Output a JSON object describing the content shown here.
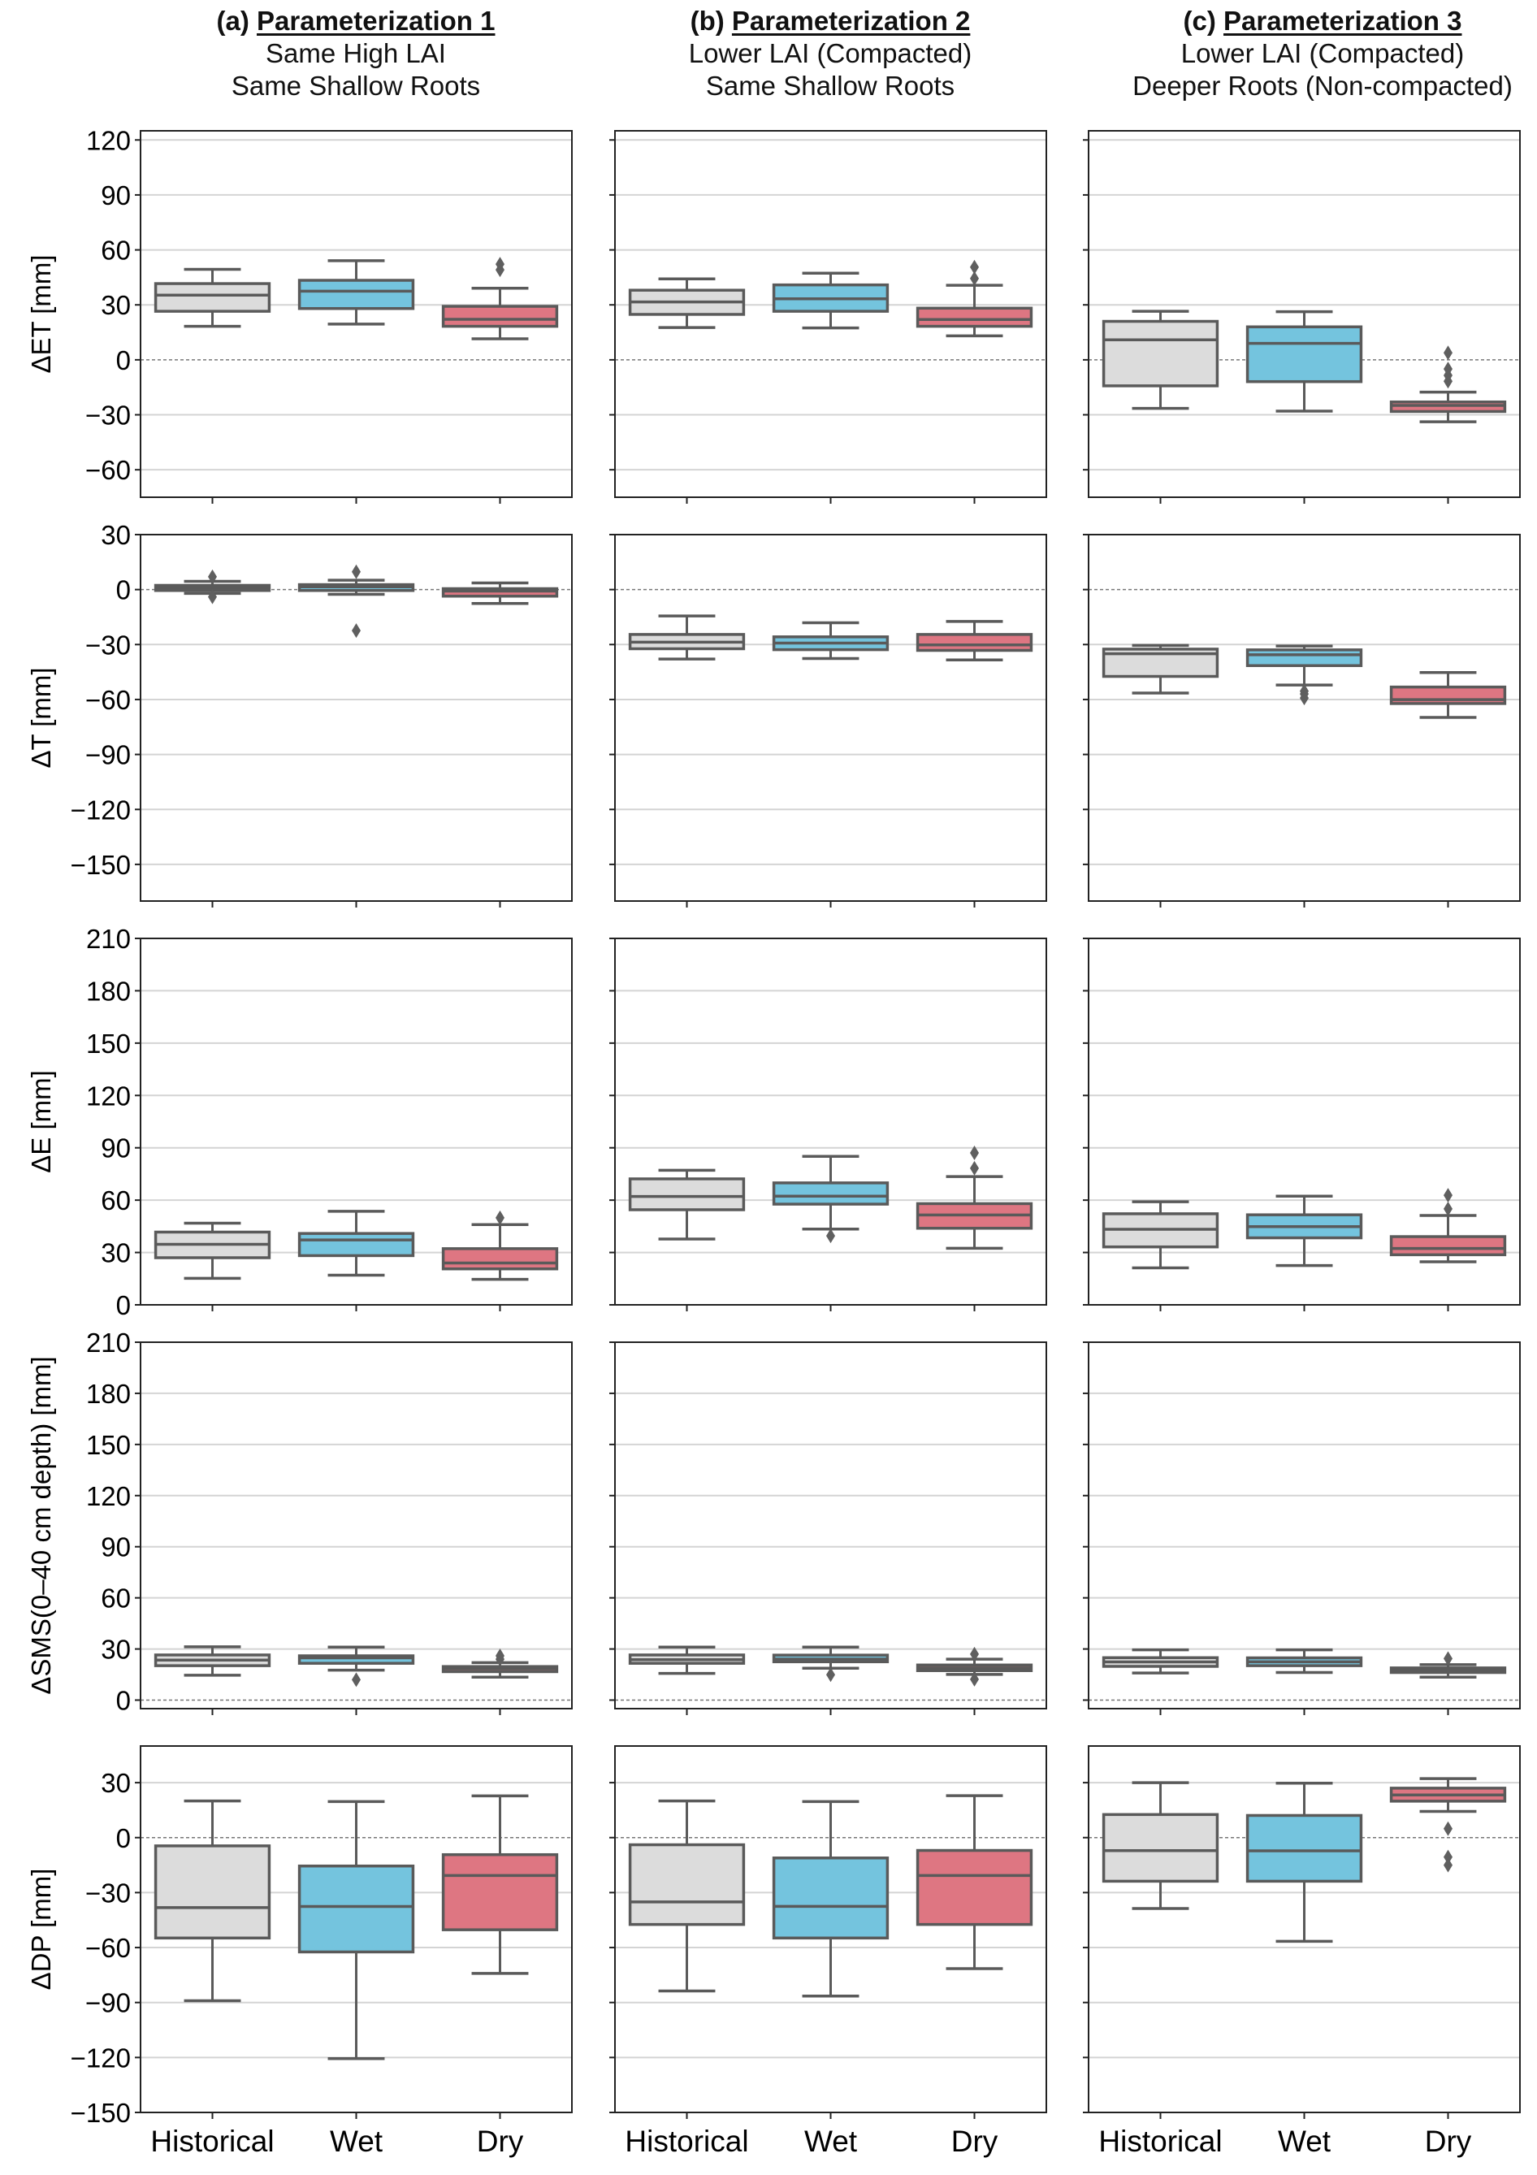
{
  "chart_data": {
    "type": "box",
    "title": "",
    "categories": [
      "Historical",
      "Wet",
      "Dry"
    ],
    "category_colors": {
      "Historical": "#dcdcdc",
      "Wet": "#74c4de",
      "Dry": "#de7682"
    },
    "edge_color": "#5a5a5a",
    "grid": "horizontal",
    "zero_line": "dashed",
    "columns": [
      {
        "id": "a",
        "prefix": "(a)",
        "title": "Parameterization 1",
        "line2": "Same High LAI",
        "line3": "Same Shallow Roots"
      },
      {
        "id": "b",
        "prefix": "(b)",
        "title": "Parameterization 2",
        "line2": "Lower LAI (Compacted)",
        "line3": "Same Shallow Roots"
      },
      {
        "id": "c",
        "prefix": "(c)",
        "title": "Parameterization 3",
        "line2": "Lower LAI (Compacted)",
        "line3": "Deeper Roots (Non-compacted)"
      }
    ],
    "rows": [
      {
        "ylabel": "ΔET [mm]",
        "ylim": [
          -75,
          125
        ],
        "yticks": [
          -60,
          -30,
          0,
          30,
          60,
          90,
          120
        ],
        "panels": [
          {
            "boxes": [
              {
                "cat": "Historical",
                "whislo": 18.3,
                "q1": 26.5,
                "med": 35.3,
                "q3": 41.6,
                "whishi": 49.4,
                "fliers": []
              },
              {
                "cat": "Wet",
                "whislo": 19.5,
                "q1": 28.0,
                "med": 37.5,
                "q3": 43.4,
                "whishi": 54.1,
                "fliers": []
              },
              {
                "cat": "Dry",
                "whislo": 11.5,
                "q1": 18.3,
                "med": 22.1,
                "q3": 29.2,
                "whishi": 39.1,
                "fliers": [
                  49.1,
                  52.2
                ]
              }
            ]
          },
          {
            "boxes": [
              {
                "cat": "Historical",
                "whislo": 17.6,
                "q1": 24.8,
                "med": 31.6,
                "q3": 38.0,
                "whishi": 44.2,
                "fliers": []
              },
              {
                "cat": "Wet",
                "whislo": 17.4,
                "q1": 26.5,
                "med": 33.3,
                "q3": 40.9,
                "whishi": 47.3,
                "fliers": []
              },
              {
                "cat": "Dry",
                "whislo": 13.1,
                "q1": 18.3,
                "med": 22.0,
                "q3": 28.2,
                "whishi": 40.7,
                "fliers": [
                  44.4,
                  50.6
                ]
              }
            ]
          },
          {
            "boxes": [
              {
                "cat": "Historical",
                "whislo": -26.5,
                "q1": -14.2,
                "med": 10.9,
                "q3": 21.0,
                "whishi": 26.5,
                "fliers": []
              },
              {
                "cat": "Wet",
                "whislo": -28.0,
                "q1": -11.9,
                "med": 9.0,
                "q3": 18.0,
                "whishi": 26.3,
                "fliers": []
              },
              {
                "cat": "Dry",
                "whislo": -33.8,
                "q1": -28.2,
                "med": -24.9,
                "q3": -23.0,
                "whishi": -17.6,
                "fliers": [
                  -11.7,
                  -8.5,
                  -5.0,
                  3.8
                ]
              }
            ]
          }
        ]
      },
      {
        "ylabel": "ΔT [mm]",
        "ylim": [
          -170,
          30
        ],
        "yticks": [
          -150,
          -120,
          -90,
          -60,
          -30,
          0,
          30
        ],
        "panels": [
          {
            "boxes": [
              {
                "cat": "Historical",
                "whislo": -2.1,
                "q1": -0.5,
                "med": 1.0,
                "q3": 2.3,
                "whishi": 4.5,
                "fliers": [
                  7.0,
                  -4.0
                ]
              },
              {
                "cat": "Wet",
                "whislo": -2.6,
                "q1": -0.5,
                "med": 1.5,
                "q3": 2.7,
                "whishi": 5.1,
                "fliers": [
                  9.7,
                  -22.4
                ]
              },
              {
                "cat": "Dry",
                "whislo": -7.6,
                "q1": -3.6,
                "med": -0.8,
                "q3": 0.5,
                "whishi": 3.6,
                "fliers": []
              }
            ]
          },
          {
            "boxes": [
              {
                "cat": "Historical",
                "whislo": -37.9,
                "q1": -32.3,
                "med": -28.7,
                "q3": -24.5,
                "whishi": -14.4,
                "fliers": []
              },
              {
                "cat": "Wet",
                "whislo": -37.6,
                "q1": -32.8,
                "med": -29.2,
                "q3": -25.8,
                "whishi": -18.1,
                "fliers": []
              },
              {
                "cat": "Dry",
                "whislo": -38.4,
                "q1": -33.2,
                "med": -30.2,
                "q3": -24.5,
                "whishi": -17.4,
                "fliers": []
              }
            ]
          },
          {
            "boxes": [
              {
                "cat": "Historical",
                "whislo": -56.5,
                "q1": -47.4,
                "med": -35.0,
                "q3": -32.5,
                "whishi": -30.5,
                "fliers": []
              },
              {
                "cat": "Wet",
                "whislo": -52.1,
                "q1": -41.5,
                "med": -35.6,
                "q3": -32.9,
                "whishi": -30.8,
                "fliers": [
                  -55.4,
                  -57.0,
                  -59.2
                ]
              },
              {
                "cat": "Dry",
                "whislo": -69.8,
                "q1": -62.2,
                "med": -60.1,
                "q3": -53.2,
                "whishi": -45.3,
                "fliers": []
              }
            ]
          }
        ]
      },
      {
        "ylabel": "ΔE [mm]",
        "ylim": [
          0,
          210
        ],
        "yticks": [
          0,
          30,
          60,
          90,
          120,
          150,
          180,
          210
        ],
        "panels": [
          {
            "boxes": [
              {
                "cat": "Historical",
                "whislo": 15.2,
                "q1": 27.0,
                "med": 34.7,
                "q3": 41.7,
                "whishi": 46.8,
                "fliers": []
              },
              {
                "cat": "Wet",
                "whislo": 17.0,
                "q1": 28.2,
                "med": 37.2,
                "q3": 40.9,
                "whishi": 53.6,
                "fliers": []
              },
              {
                "cat": "Dry",
                "whislo": 14.6,
                "q1": 20.6,
                "med": 24.0,
                "q3": 32.2,
                "whishi": 46.0,
                "fliers": [
                  49.9
                ]
              }
            ]
          },
          {
            "boxes": [
              {
                "cat": "Historical",
                "whislo": 37.7,
                "q1": 54.5,
                "med": 62.1,
                "q3": 72.2,
                "whishi": 77.1,
                "fliers": []
              },
              {
                "cat": "Wet",
                "whislo": 43.4,
                "q1": 57.7,
                "med": 62.3,
                "q3": 69.9,
                "whishi": 85.1,
                "fliers": [
                  39.5
                ]
              },
              {
                "cat": "Dry",
                "whislo": 32.4,
                "q1": 43.9,
                "med": 51.5,
                "q3": 58.0,
                "whishi": 73.5,
                "fliers": [
                  78.3,
                  87.1
                ]
              }
            ]
          },
          {
            "boxes": [
              {
                "cat": "Historical",
                "whislo": 21.2,
                "q1": 33.2,
                "med": 43.3,
                "q3": 52.2,
                "whishi": 59.1,
                "fliers": []
              },
              {
                "cat": "Wet",
                "whislo": 22.5,
                "q1": 38.4,
                "med": 44.8,
                "q3": 51.6,
                "whishi": 62.3,
                "fliers": []
              },
              {
                "cat": "Dry",
                "whislo": 24.7,
                "q1": 28.7,
                "med": 32.3,
                "q3": 39.1,
                "whishi": 51.2,
                "fliers": [
                  55.0,
                  62.8
                ]
              }
            ]
          }
        ]
      },
      {
        "ylabel": "ΔSMS(0–40 cm depth) [mm]",
        "ylim": [
          -5,
          210
        ],
        "yticks": [
          0,
          30,
          60,
          90,
          120,
          150,
          180,
          210
        ],
        "panels": [
          {
            "boxes": [
              {
                "cat": "Historical",
                "whislo": 14.6,
                "q1": 20.2,
                "med": 23.5,
                "q3": 26.5,
                "whishi": 31.3,
                "fliers": []
              },
              {
                "cat": "Wet",
                "whislo": 17.6,
                "q1": 21.6,
                "med": 24.8,
                "q3": 26.0,
                "whishi": 31.1,
                "fliers": [
                  12.0
                ]
              },
              {
                "cat": "Dry",
                "whislo": 13.5,
                "q1": 16.7,
                "med": 18.4,
                "q3": 19.7,
                "whishi": 22.0,
                "fliers": [
                  24.0,
                  26.0
                ]
              }
            ]
          },
          {
            "boxes": [
              {
                "cat": "Historical",
                "whislo": 15.7,
                "q1": 21.6,
                "med": 23.7,
                "q3": 26.5,
                "whishi": 31.1,
                "fliers": []
              },
              {
                "cat": "Wet",
                "whislo": 18.7,
                "q1": 22.5,
                "med": 24.1,
                "q3": 26.4,
                "whishi": 31.1,
                "fliers": [
                  14.9
                ]
              },
              {
                "cat": "Dry",
                "whislo": 15.1,
                "q1": 17.3,
                "med": 18.9,
                "q3": 20.6,
                "whishi": 24.0,
                "fliers": [
                  27.0,
                  12.2
                ]
              }
            ]
          },
          {
            "boxes": [
              {
                "cat": "Historical",
                "whislo": 15.9,
                "q1": 19.8,
                "med": 22.4,
                "q3": 24.9,
                "whishi": 29.5,
                "fliers": []
              },
              {
                "cat": "Wet",
                "whislo": 16.2,
                "q1": 20.2,
                "med": 22.5,
                "q3": 24.8,
                "whishi": 29.5,
                "fliers": []
              },
              {
                "cat": "Dry",
                "whislo": 13.5,
                "q1": 16.2,
                "med": 17.5,
                "q3": 18.9,
                "whishi": 20.8,
                "fliers": [
                  24.4
                ]
              }
            ]
          }
        ]
      },
      {
        "ylabel": "ΔDP [mm]",
        "ylim": [
          -150,
          50
        ],
        "yticks": [
          -150,
          -120,
          -90,
          -60,
          -30,
          0,
          30
        ],
        "panels": [
          {
            "boxes": [
              {
                "cat": "Historical",
                "whislo": -89.0,
                "q1": -54.8,
                "med": -38.2,
                "q3": -4.5,
                "whishi": 20.0,
                "fliers": []
              },
              {
                "cat": "Wet",
                "whislo": -120.6,
                "q1": -62.4,
                "med": -37.6,
                "q3": -15.5,
                "whishi": 19.7,
                "fliers": []
              },
              {
                "cat": "Dry",
                "whislo": -74.1,
                "q1": -50.3,
                "med": -20.7,
                "q3": -9.3,
                "whishi": 22.8,
                "fliers": []
              }
            ]
          },
          {
            "boxes": [
              {
                "cat": "Historical",
                "whislo": -83.7,
                "q1": -47.4,
                "med": -35.1,
                "q3": -3.9,
                "whishi": 20.0,
                "fliers": []
              },
              {
                "cat": "Wet",
                "whislo": -86.5,
                "q1": -54.8,
                "med": -37.5,
                "q3": -11.1,
                "whishi": 19.7,
                "fliers": []
              },
              {
                "cat": "Dry",
                "whislo": -71.5,
                "q1": -47.4,
                "med": -20.7,
                "q3": -7.0,
                "whishi": 22.9,
                "fliers": []
              }
            ]
          },
          {
            "boxes": [
              {
                "cat": "Historical",
                "whislo": -38.7,
                "q1": -23.8,
                "med": -7.1,
                "q3": 12.6,
                "whishi": 30.0,
                "fliers": []
              },
              {
                "cat": "Wet",
                "whislo": -56.6,
                "q1": -23.8,
                "med": -7.2,
                "q3": 12.1,
                "whishi": 29.7,
                "fliers": []
              },
              {
                "cat": "Dry",
                "whislo": 14.3,
                "q1": 19.9,
                "med": 23.3,
                "q3": 27.0,
                "whishi": 32.2,
                "fliers": [
                  4.9,
                  -10.6,
                  -15.0
                ]
              }
            ]
          }
        ]
      }
    ]
  }
}
